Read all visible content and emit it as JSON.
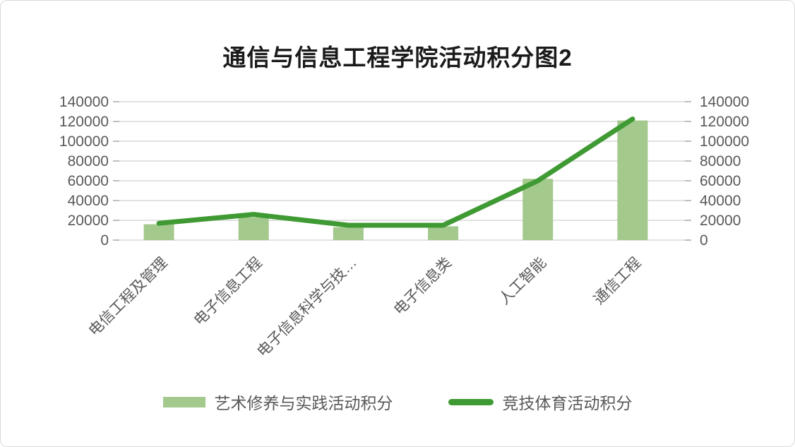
{
  "chart_data": {
    "type": "combo",
    "title": "通信与信息工程学院活动积分图2",
    "categories": [
      "电信工程及管理",
      "电子信息工程",
      "电子信息科学与技…",
      "电子信息类",
      "人工智能",
      "通信工程"
    ],
    "series": [
      {
        "name": "艺术修养与实践活动积分",
        "type": "bar",
        "color": "#a3c98d",
        "values": [
          16000,
          23000,
          13000,
          14000,
          62000,
          121000
        ]
      },
      {
        "name": "竞技体育活动积分",
        "type": "line",
        "color": "#3f9a33",
        "values": [
          17000,
          26000,
          15000,
          15000,
          60000,
          122500
        ]
      }
    ],
    "ylim": [
      0,
      140000
    ],
    "ytick_interval": 20000,
    "yticks": [
      0,
      20000,
      40000,
      60000,
      80000,
      100000,
      120000,
      140000
    ],
    "y_axis_sides": [
      "left",
      "right"
    ],
    "grid": true,
    "legend_position": "bottom",
    "xlabel": "",
    "ylabel": ""
  },
  "styles": {
    "axis_label_color": "#595959",
    "category_label_color": "#595959",
    "gridline_color": "#d9d9d9",
    "tick_color": "#bfbfbf",
    "title_color": "#1a1a1a",
    "background": "#ffffff",
    "border_color": "#d9d9d9"
  }
}
